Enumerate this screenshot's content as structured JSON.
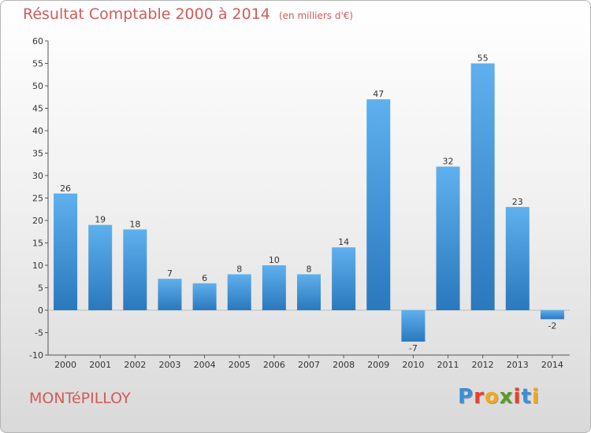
{
  "header": {
    "title": "Résultat Comptable 2000 à 2014",
    "unit": "(en milliers d'€)"
  },
  "footer": {
    "commune": "MONTéPILLOY",
    "logo_letters": [
      "P",
      "r",
      "o",
      "x",
      "i",
      "t",
      "i"
    ],
    "logo_colors": [
      "#3a8fd6",
      "#e8402a",
      "#f2a81d",
      "#5a9a2a",
      "#e8402a",
      "#3a8fd6",
      "#f2a81d"
    ]
  },
  "chart_data": {
    "type": "bar",
    "title": "Résultat Comptable 2000 à 2014",
    "ylabel": "en milliers d'€",
    "xlabel": "",
    "categories": [
      "2000",
      "2001",
      "2002",
      "2003",
      "2004",
      "2005",
      "2006",
      "2007",
      "2008",
      "2009",
      "2010",
      "2011",
      "2012",
      "2013",
      "2014"
    ],
    "values": [
      26,
      19,
      18,
      7,
      6,
      8,
      10,
      8,
      14,
      47,
      -7,
      32,
      55,
      23,
      -2
    ],
    "ylim": [
      -10,
      60
    ],
    "yticks": [
      -10,
      -5,
      0,
      5,
      10,
      15,
      20,
      25,
      30,
      35,
      40,
      45,
      50,
      55,
      60
    ],
    "grid": false,
    "bar_color": "#3d8fd6"
  }
}
